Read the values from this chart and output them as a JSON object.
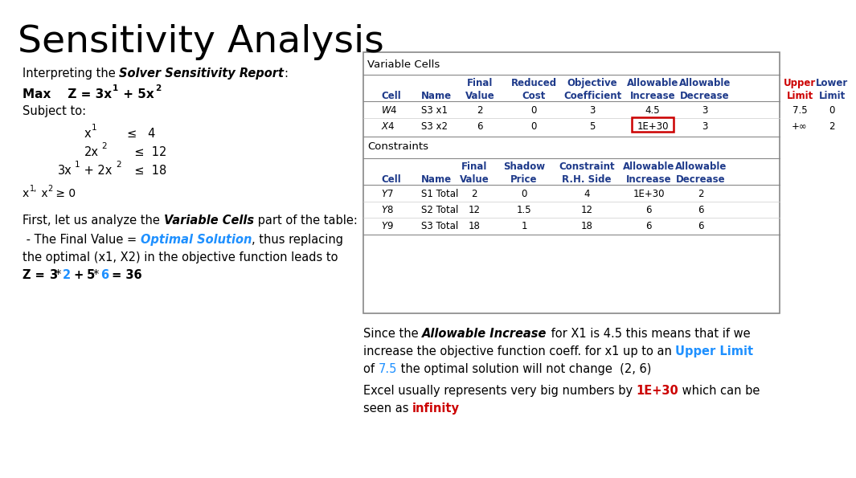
{
  "title": "Sensitivity Analysis",
  "bg_color": "#ffffff",
  "header_color": "#1e3a8a",
  "red_color": "#cc0000",
  "blue_color": "#1e90ff",
  "fig_width": 10.24,
  "fig_height": 5.76,
  "table": {
    "var_data": [
      [
        "$W$4",
        "S3 x1",
        "2",
        "0",
        "3",
        "4.5",
        "3",
        "7.5",
        "0"
      ],
      [
        "$X$4",
        "S3 x2",
        "6",
        "0",
        "5",
        "1E+30",
        "3",
        "+∞",
        "2"
      ]
    ],
    "con_data": [
      [
        "$Y$7",
        "S1 Total",
        "2",
        "0",
        "4",
        "1E+30",
        "2"
      ],
      [
        "$Y$8",
        "S2 Total",
        "12",
        "1.5",
        "12",
        "6",
        "6"
      ],
      [
        "$Y$9",
        "S3 Total",
        "18",
        "1",
        "18",
        "6",
        "6"
      ]
    ]
  }
}
